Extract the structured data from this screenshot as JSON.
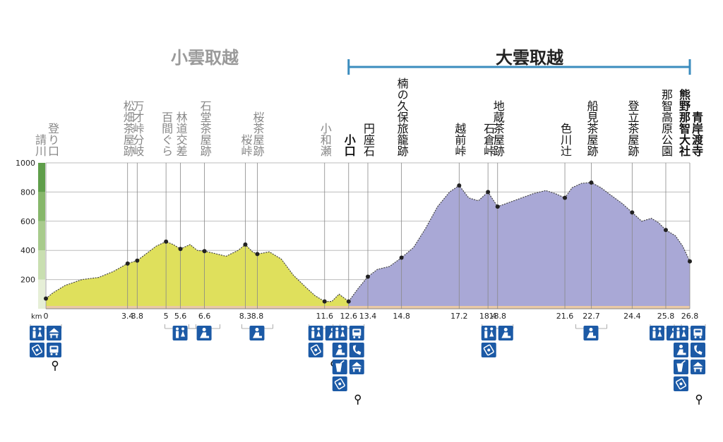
{
  "chart_data": {
    "type": "area",
    "section_left": "小雲取越",
    "section_right": "大雲取越",
    "x_unit": "km",
    "ylim": [
      0,
      1000
    ],
    "xlim": [
      0,
      26.8
    ],
    "y_ticks": [
      "200",
      "400",
      "600",
      "800",
      "1000"
    ],
    "y_tick_values": [
      200,
      400,
      600,
      800,
      1000
    ],
    "x_tick_labels": [
      {
        "v": 0,
        "t": "0"
      },
      {
        "v": 3.4,
        "t": "3.4"
      },
      {
        "v": 3.8,
        "t": "3.8"
      },
      {
        "v": 5,
        "t": "5"
      },
      {
        "v": 5.6,
        "t": "5.6"
      },
      {
        "v": 6.6,
        "t": "6.6"
      },
      {
        "v": 8.3,
        "t": "8.3"
      },
      {
        "v": 8.8,
        "t": "8.8"
      },
      {
        "v": 11.6,
        "t": "11.6"
      },
      {
        "v": 12.6,
        "t": "12.6"
      },
      {
        "v": 13.4,
        "t": "13.4"
      },
      {
        "v": 14.8,
        "t": "14.8"
      },
      {
        "v": 17.2,
        "t": "17.2"
      },
      {
        "v": 18.4,
        "t": "18.4"
      },
      {
        "v": 18.8,
        "t": "18.8"
      },
      {
        "v": 21.6,
        "t": "21.6"
      },
      {
        "v": 22.7,
        "t": "22.7"
      },
      {
        "v": 24.4,
        "t": "24.4"
      },
      {
        "v": 25.8,
        "t": "25.8"
      },
      {
        "v": 26.8,
        "t": "26.8"
      }
    ],
    "waypoints": [
      {
        "km": 0,
        "elev": 70,
        "lines": [
          "請川",
          "登り口"
        ],
        "bold": false,
        "color": "#888888"
      },
      {
        "km": 3.4,
        "elev": 310,
        "lines": [
          "松畑茶屋跡"
        ],
        "bold": false,
        "color": "#888888"
      },
      {
        "km": 3.8,
        "elev": 330,
        "lines": [
          "万才峠分岐"
        ],
        "bold": false,
        "color": "#888888"
      },
      {
        "km": 5,
        "elev": 460,
        "lines": [
          "百間ぐら"
        ],
        "bold": false,
        "color": "#888888"
      },
      {
        "km": 5.6,
        "elev": 410,
        "lines": [
          "林道交差"
        ],
        "bold": false,
        "color": "#888888"
      },
      {
        "km": 6.6,
        "elev": 395,
        "lines": [
          "石堂茶屋跡"
        ],
        "bold": false,
        "color": "#888888"
      },
      {
        "km": 8.3,
        "elev": 440,
        "lines": [
          "桜峠"
        ],
        "bold": false,
        "color": "#888888"
      },
      {
        "km": 8.8,
        "elev": 375,
        "lines": [
          "桜茶屋跡"
        ],
        "bold": false,
        "color": "#888888"
      },
      {
        "km": 11.6,
        "elev": 50,
        "lines": [
          "小和瀬"
        ],
        "bold": false,
        "color": "#888888"
      },
      {
        "km": 12.6,
        "elev": 50,
        "lines": [
          "小口"
        ],
        "bold": true,
        "color": "#111111"
      },
      {
        "km": 13.4,
        "elev": 220,
        "lines": [
          "円座石"
        ],
        "bold": false,
        "color": "#111111"
      },
      {
        "km": 14.8,
        "elev": 350,
        "lines": [
          "楠の久保旅籠跡"
        ],
        "bold": false,
        "color": "#111111"
      },
      {
        "km": 17.2,
        "elev": 845,
        "lines": [
          "越前峠"
        ],
        "bold": false,
        "color": "#111111"
      },
      {
        "km": 18.4,
        "elev": 800,
        "lines": [
          "石倉峠"
        ],
        "bold": false,
        "color": "#111111"
      },
      {
        "km": 18.8,
        "elev": 700,
        "lines": [
          "地蔵茶屋跡"
        ],
        "bold": false,
        "color": "#111111"
      },
      {
        "km": 21.6,
        "elev": 760,
        "lines": [
          "色川辻"
        ],
        "bold": false,
        "color": "#111111"
      },
      {
        "km": 22.7,
        "elev": 865,
        "lines": [
          "船見茶屋跡"
        ],
        "bold": false,
        "color": "#111111"
      },
      {
        "km": 24.4,
        "elev": 660,
        "lines": [
          "登立茶屋跡"
        ],
        "bold": false,
        "color": "#111111"
      },
      {
        "km": 25.8,
        "elev": 540,
        "lines": [
          "那智高原公園"
        ],
        "bold": false,
        "color": "#111111"
      },
      {
        "km": 26.8,
        "elev": 325,
        "lines": [
          "熊野那智大社",
          "青岸渡寺"
        ],
        "bold": true,
        "color": "#111111"
      }
    ],
    "profile": [
      [
        0,
        70
      ],
      [
        0.3,
        110
      ],
      [
        0.8,
        160
      ],
      [
        1.5,
        200
      ],
      [
        2.2,
        215
      ],
      [
        2.8,
        255
      ],
      [
        3.4,
        310
      ],
      [
        3.8,
        330
      ],
      [
        4.2,
        380
      ],
      [
        4.6,
        430
      ],
      [
        5,
        460
      ],
      [
        5.3,
        440
      ],
      [
        5.6,
        410
      ],
      [
        6.0,
        440
      ],
      [
        6.3,
        400
      ],
      [
        6.6,
        395
      ],
      [
        7.0,
        380
      ],
      [
        7.5,
        360
      ],
      [
        8.0,
        400
      ],
      [
        8.3,
        440
      ],
      [
        8.6,
        390
      ],
      [
        8.8,
        375
      ],
      [
        9.3,
        390
      ],
      [
        9.8,
        340
      ],
      [
        10.3,
        230
      ],
      [
        10.8,
        150
      ],
      [
        11.2,
        90
      ],
      [
        11.6,
        50
      ],
      [
        11.9,
        50
      ],
      [
        12.2,
        100
      ],
      [
        12.6,
        50
      ],
      [
        13.0,
        140
      ],
      [
        13.4,
        220
      ],
      [
        13.8,
        270
      ],
      [
        14.3,
        290
      ],
      [
        14.8,
        350
      ],
      [
        15.3,
        420
      ],
      [
        15.8,
        550
      ],
      [
        16.3,
        700
      ],
      [
        16.8,
        800
      ],
      [
        17.2,
        845
      ],
      [
        17.6,
        760
      ],
      [
        18.0,
        740
      ],
      [
        18.4,
        800
      ],
      [
        18.8,
        700
      ],
      [
        19.3,
        730
      ],
      [
        19.8,
        760
      ],
      [
        20.3,
        790
      ],
      [
        20.8,
        810
      ],
      [
        21.2,
        790
      ],
      [
        21.6,
        760
      ],
      [
        21.9,
        830
      ],
      [
        22.3,
        860
      ],
      [
        22.7,
        865
      ],
      [
        23.1,
        830
      ],
      [
        23.5,
        780
      ],
      [
        24.0,
        720
      ],
      [
        24.4,
        660
      ],
      [
        24.8,
        600
      ],
      [
        25.2,
        620
      ],
      [
        25.5,
        590
      ],
      [
        25.8,
        540
      ],
      [
        26.2,
        500
      ],
      [
        26.5,
        430
      ],
      [
        26.8,
        325
      ]
    ],
    "split_km": 12.6,
    "colors": {
      "left_fill": "#dfe05c",
      "right_fill": "#a9a8d6",
      "line": "#444444",
      "bracket": "#3b8cbe",
      "icon": "#1c5aa6"
    },
    "facilities": [
      {
        "km": 0,
        "icons": [
          "toilet-icon",
          "rest-house-icon",
          "parking-icon",
          "bus-icon"
        ],
        "pin": true
      },
      {
        "km": 5.6,
        "icons": [
          "toilet-icon"
        ],
        "pin": false
      },
      {
        "km": 6.6,
        "icons": [
          "rest-area-icon"
        ],
        "pin": false
      },
      {
        "km": 8.8,
        "icons": [
          "rest-area-icon"
        ],
        "pin": false
      },
      {
        "km": 11.6,
        "icons": [
          "toilet-icon",
          "rest-area-icon",
          "parking-icon"
        ],
        "pin": true
      },
      {
        "km": 12.6,
        "icons": [
          "toilet-icon",
          "bus-icon",
          "rest-area-icon",
          "phone-icon",
          "drink-icon",
          "rest-house-icon",
          "parking-icon"
        ],
        "pin": true
      },
      {
        "km": 18.8,
        "icons": [
          "toilet-icon",
          "rest-area-icon",
          "parking-icon"
        ],
        "pin": false
      },
      {
        "km": 22.7,
        "icons": [
          "rest-area-icon"
        ],
        "pin": false
      },
      {
        "km": 25.8,
        "icons": [
          "toilet-icon",
          "rest-area-icon"
        ],
        "pin": false
      },
      {
        "km": 26.8,
        "icons": [
          "toilet-icon",
          "bus-icon",
          "rest-area-icon",
          "phone-icon",
          "drink-icon",
          "rest-house-icon",
          "parking-icon"
        ],
        "pin": true
      }
    ]
  }
}
